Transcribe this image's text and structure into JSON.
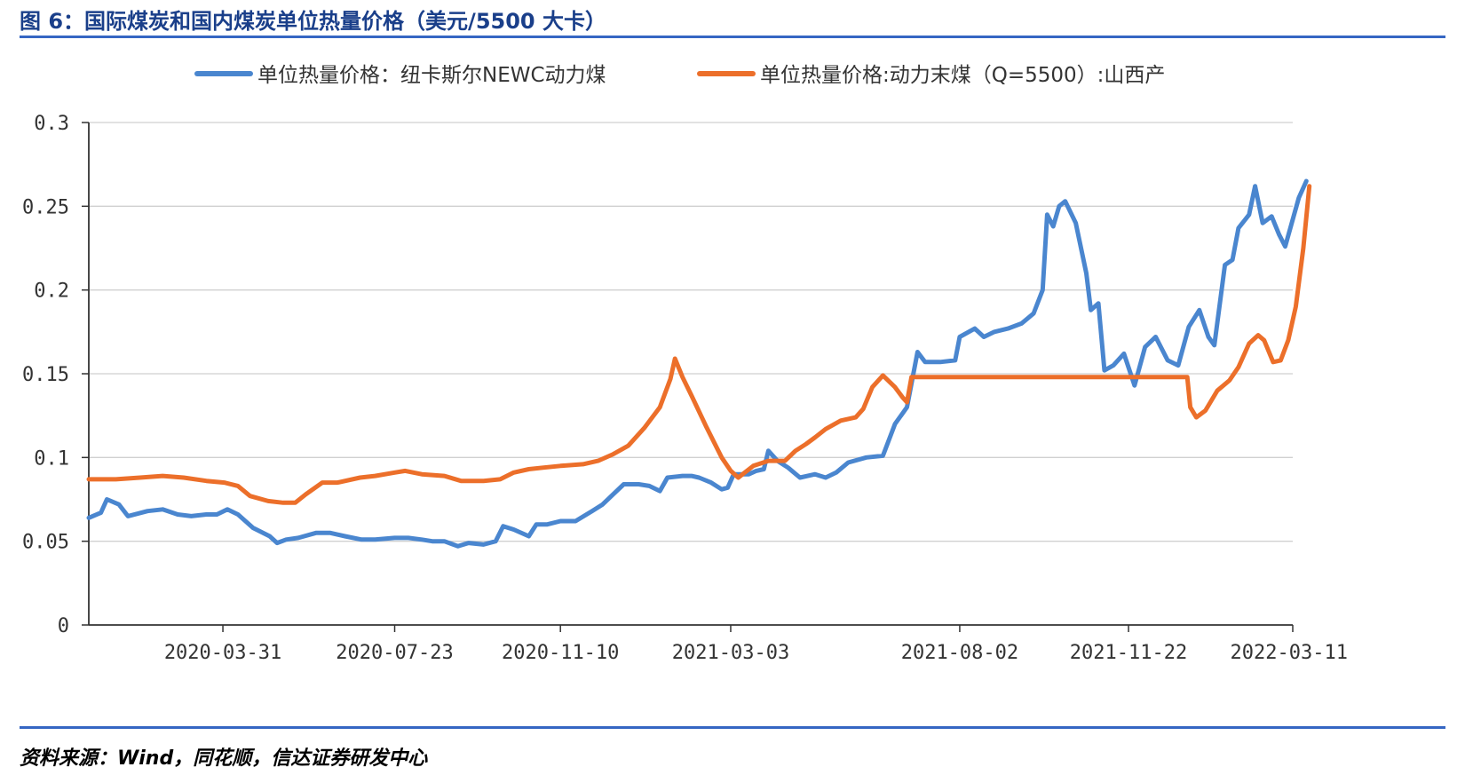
{
  "title": "图 6：国际煤炭和国内煤炭单位热量价格（美元/5500 大卡）",
  "source": "资料来源：Wind，同花顺，信达证券研发中心",
  "colors": {
    "rule": "#3566c3",
    "title": "#1a3f8a",
    "series1": "#4a86cf",
    "series2": "#ec6f2a",
    "grid": "#d0d0d0"
  },
  "chart_data": {
    "type": "line",
    "title": "",
    "xlabel": "",
    "ylabel": "",
    "ylim": [
      0,
      0.3
    ],
    "grid": true,
    "legend_position": "top",
    "yticks": [
      "0",
      "0.05",
      "0.1",
      "0.15",
      "0.2",
      "0.25",
      "0.3"
    ],
    "xticks": [
      "2020-03-31",
      "2020-07-23",
      "2020-11-10",
      "2021-03-03",
      "2021-08-02",
      "2021-11-22",
      "2022-03-11"
    ],
    "x_range": [
      "2020-01-02",
      "2022-03-11"
    ],
    "series": [
      {
        "name": "单位热量价格：纽卡斯尔NEWC动力煤",
        "points": [
          [
            "2020-01-02",
            0.064
          ],
          [
            "2020-01-10",
            0.067
          ],
          [
            "2020-01-14",
            0.075
          ],
          [
            "2020-01-22",
            0.072
          ],
          [
            "2020-01-28",
            0.065
          ],
          [
            "2020-02-10",
            0.068
          ],
          [
            "2020-02-20",
            0.069
          ],
          [
            "2020-03-01",
            0.066
          ],
          [
            "2020-03-10",
            0.065
          ],
          [
            "2020-03-20",
            0.066
          ],
          [
            "2020-03-27",
            0.066
          ],
          [
            "2020-04-03",
            0.069
          ],
          [
            "2020-04-10",
            0.066
          ],
          [
            "2020-04-20",
            0.058
          ],
          [
            "2020-05-01",
            0.053
          ],
          [
            "2020-05-06",
            0.049
          ],
          [
            "2020-05-12",
            0.051
          ],
          [
            "2020-05-20",
            0.052
          ],
          [
            "2020-06-01",
            0.055
          ],
          [
            "2020-06-10",
            0.055
          ],
          [
            "2020-06-20",
            0.053
          ],
          [
            "2020-07-01",
            0.051
          ],
          [
            "2020-07-10",
            0.051
          ],
          [
            "2020-07-23",
            0.052
          ],
          [
            "2020-08-01",
            0.052
          ],
          [
            "2020-08-10",
            0.051
          ],
          [
            "2020-08-17",
            0.05
          ],
          [
            "2020-08-25",
            0.05
          ],
          [
            "2020-09-03",
            0.047
          ],
          [
            "2020-09-10",
            0.049
          ],
          [
            "2020-09-20",
            0.048
          ],
          [
            "2020-09-28",
            0.05
          ],
          [
            "2020-10-03",
            0.059
          ],
          [
            "2020-10-10",
            0.057
          ],
          [
            "2020-10-20",
            0.053
          ],
          [
            "2020-10-25",
            0.06
          ],
          [
            "2020-11-01",
            0.06
          ],
          [
            "2020-11-10",
            0.062
          ],
          [
            "2020-11-20",
            0.062
          ],
          [
            "2020-12-01",
            0.068
          ],
          [
            "2020-12-08",
            0.072
          ],
          [
            "2020-12-15",
            0.078
          ],
          [
            "2020-12-22",
            0.084
          ],
          [
            "2021-01-01",
            0.084
          ],
          [
            "2021-01-08",
            0.083
          ],
          [
            "2021-01-15",
            0.08
          ],
          [
            "2021-01-20",
            0.088
          ],
          [
            "2021-01-30",
            0.089
          ],
          [
            "2021-02-05",
            0.089
          ],
          [
            "2021-02-10",
            0.088
          ],
          [
            "2021-02-18",
            0.085
          ],
          [
            "2021-02-25",
            0.081
          ],
          [
            "2021-03-01",
            0.082
          ],
          [
            "2021-03-05",
            0.09
          ],
          [
            "2021-03-15",
            0.09
          ],
          [
            "2021-03-20",
            0.092
          ],
          [
            "2021-03-25",
            0.093
          ],
          [
            "2021-03-28",
            0.104
          ],
          [
            "2021-04-03",
            0.098
          ],
          [
            "2021-04-10",
            0.094
          ],
          [
            "2021-04-18",
            0.088
          ],
          [
            "2021-04-28",
            0.09
          ],
          [
            "2021-05-05",
            0.088
          ],
          [
            "2021-05-12",
            0.091
          ],
          [
            "2021-05-20",
            0.097
          ],
          [
            "2021-06-01",
            0.1
          ],
          [
            "2021-06-12",
            0.101
          ],
          [
            "2021-06-20",
            0.12
          ],
          [
            "2021-06-28",
            0.13
          ],
          [
            "2021-07-05",
            0.163
          ],
          [
            "2021-07-10",
            0.157
          ],
          [
            "2021-07-20",
            0.157
          ],
          [
            "2021-07-30",
            0.158
          ],
          [
            "2021-08-02",
            0.172
          ],
          [
            "2021-08-12",
            0.177
          ],
          [
            "2021-08-18",
            0.172
          ],
          [
            "2021-08-25",
            0.175
          ],
          [
            "2021-09-03",
            0.177
          ],
          [
            "2021-09-12",
            0.18
          ],
          [
            "2021-09-20",
            0.186
          ],
          [
            "2021-09-26",
            0.2
          ],
          [
            "2021-09-29",
            0.245
          ],
          [
            "2021-10-03",
            0.238
          ],
          [
            "2021-10-07",
            0.25
          ],
          [
            "2021-10-11",
            0.253
          ],
          [
            "2021-10-18",
            0.24
          ],
          [
            "2021-10-25",
            0.21
          ],
          [
            "2021-10-28",
            0.188
          ],
          [
            "2021-11-02",
            0.192
          ],
          [
            "2021-11-06",
            0.152
          ],
          [
            "2021-11-12",
            0.155
          ],
          [
            "2021-11-19",
            0.162
          ],
          [
            "2021-11-26",
            0.143
          ],
          [
            "2021-12-03",
            0.166
          ],
          [
            "2021-12-10",
            0.172
          ],
          [
            "2021-12-18",
            0.158
          ],
          [
            "2021-12-25",
            0.155
          ],
          [
            "2022-01-01",
            0.178
          ],
          [
            "2022-01-08",
            0.188
          ],
          [
            "2022-01-14",
            0.172
          ],
          [
            "2022-01-18",
            0.167
          ],
          [
            "2022-01-25",
            0.215
          ],
          [
            "2022-01-30",
            0.218
          ],
          [
            "2022-02-03",
            0.237
          ],
          [
            "2022-02-10",
            0.245
          ],
          [
            "2022-02-14",
            0.262
          ],
          [
            "2022-02-19",
            0.24
          ],
          [
            "2022-02-25",
            0.244
          ],
          [
            "2022-03-02",
            0.233
          ],
          [
            "2022-03-06",
            0.226
          ],
          [
            "2022-03-15",
            0.255
          ],
          [
            "2022-03-20",
            0.265
          ]
        ]
      },
      {
        "name": "单位热量价格:动力末煤（Q=5500）:山西产",
        "points": [
          [
            "2020-01-02",
            0.087
          ],
          [
            "2020-01-20",
            0.087
          ],
          [
            "2020-02-05",
            0.088
          ],
          [
            "2020-02-20",
            0.089
          ],
          [
            "2020-03-05",
            0.088
          ],
          [
            "2020-03-20",
            0.086
          ],
          [
            "2020-04-01",
            0.085
          ],
          [
            "2020-04-10",
            0.083
          ],
          [
            "2020-04-18",
            0.077
          ],
          [
            "2020-04-30",
            0.074
          ],
          [
            "2020-05-10",
            0.073
          ],
          [
            "2020-05-18",
            0.073
          ],
          [
            "2020-05-25",
            0.078
          ],
          [
            "2020-06-05",
            0.085
          ],
          [
            "2020-06-15",
            0.085
          ],
          [
            "2020-06-30",
            0.088
          ],
          [
            "2020-07-10",
            0.089
          ],
          [
            "2020-07-23",
            0.091
          ],
          [
            "2020-07-30",
            0.092
          ],
          [
            "2020-08-10",
            0.09
          ],
          [
            "2020-08-25",
            0.089
          ],
          [
            "2020-09-05",
            0.086
          ],
          [
            "2020-09-20",
            0.086
          ],
          [
            "2020-10-01",
            0.087
          ],
          [
            "2020-10-10",
            0.091
          ],
          [
            "2020-10-20",
            0.093
          ],
          [
            "2020-10-30",
            0.094
          ],
          [
            "2020-11-10",
            0.095
          ],
          [
            "2020-11-25",
            0.096
          ],
          [
            "2020-12-05",
            0.098
          ],
          [
            "2020-12-15",
            0.102
          ],
          [
            "2020-12-25",
            0.107
          ],
          [
            "2021-01-05",
            0.118
          ],
          [
            "2021-01-15",
            0.13
          ],
          [
            "2021-01-22",
            0.147
          ],
          [
            "2021-01-25",
            0.159
          ],
          [
            "2021-01-30",
            0.148
          ],
          [
            "2021-02-05",
            0.137
          ],
          [
            "2021-02-15",
            0.118
          ],
          [
            "2021-02-25",
            0.1
          ],
          [
            "2021-03-03",
            0.092
          ],
          [
            "2021-03-08",
            0.088
          ],
          [
            "2021-03-18",
            0.095
          ],
          [
            "2021-03-28",
            0.098
          ],
          [
            "2021-04-08",
            0.098
          ],
          [
            "2021-04-15",
            0.104
          ],
          [
            "2021-04-22",
            0.108
          ],
          [
            "2021-04-28",
            0.112
          ],
          [
            "2021-05-05",
            0.117
          ],
          [
            "2021-05-15",
            0.122
          ],
          [
            "2021-05-25",
            0.124
          ],
          [
            "2021-05-30",
            0.129
          ],
          [
            "2021-06-05",
            0.142
          ],
          [
            "2021-06-12",
            0.149
          ],
          [
            "2021-06-20",
            0.142
          ],
          [
            "2021-06-25",
            0.136
          ],
          [
            "2021-06-28",
            0.133
          ],
          [
            "2021-07-01",
            0.148
          ],
          [
            "2021-08-02",
            0.148
          ],
          [
            "2021-10-01",
            0.148
          ],
          [
            "2021-11-22",
            0.148
          ],
          [
            "2021-12-31",
            0.148
          ],
          [
            "2022-01-02",
            0.13
          ],
          [
            "2022-01-06",
            0.124
          ],
          [
            "2022-01-12",
            0.128
          ],
          [
            "2022-01-20",
            0.14
          ],
          [
            "2022-01-28",
            0.146
          ],
          [
            "2022-02-03",
            0.154
          ],
          [
            "2022-02-10",
            0.168
          ],
          [
            "2022-02-16",
            0.173
          ],
          [
            "2022-02-20",
            0.17
          ],
          [
            "2022-02-26",
            0.157
          ],
          [
            "2022-03-03",
            0.158
          ],
          [
            "2022-03-08",
            0.17
          ],
          [
            "2022-03-13",
            0.19
          ],
          [
            "2022-03-18",
            0.225
          ],
          [
            "2022-03-22",
            0.262
          ]
        ]
      }
    ]
  }
}
